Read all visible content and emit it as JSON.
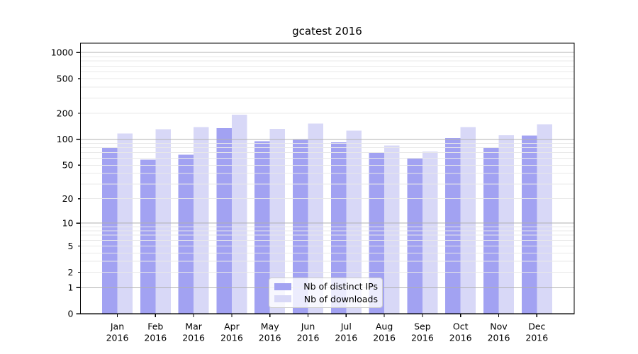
{
  "colors": {
    "background": "#ffffff",
    "axis": "#000000",
    "text": "#000000",
    "grid_minor": "#e8e8e8",
    "grid_major": "#b0b0b0",
    "legend_border": "#cccccc"
  },
  "chart_data": {
    "type": "bar",
    "title": "gcatest 2016",
    "y_scale": "log1p",
    "ylim": [
      0,
      1250
    ],
    "grid": "both",
    "legend_position": "lower center",
    "x_year": "2016",
    "categories": [
      "Jan",
      "Feb",
      "Mar",
      "Apr",
      "May",
      "Jun",
      "Jul",
      "Aug",
      "Sep",
      "Oct",
      "Nov",
      "Dec"
    ],
    "y_ticks": [
      0,
      1,
      2,
      5,
      10,
      20,
      50,
      100,
      200,
      500,
      1000
    ],
    "y_major_ticks": [
      0,
      1,
      10,
      100,
      1000
    ],
    "y_minor_gridlines": [
      2,
      3,
      4,
      5,
      6,
      7,
      8,
      9,
      20,
      30,
      40,
      50,
      60,
      70,
      80,
      90,
      200,
      300,
      400,
      500,
      600,
      700,
      800,
      900
    ],
    "series": [
      {
        "name": "Nb of distinct IPs",
        "color": "#a2a2f2",
        "values": [
          81,
          58,
          66,
          135,
          95,
          100,
          92,
          70,
          61,
          103,
          80,
          110
        ]
      },
      {
        "name": "Nb of downloads",
        "color": "#d8d8f7",
        "values": [
          117,
          131,
          138,
          193,
          132,
          152,
          126,
          85,
          72,
          138,
          111,
          150
        ]
      }
    ]
  }
}
